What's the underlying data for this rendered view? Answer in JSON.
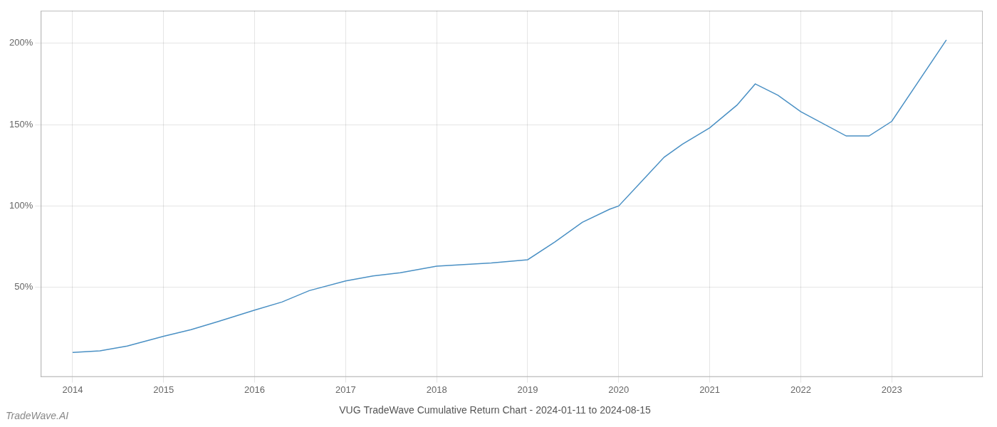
{
  "chart_data": {
    "type": "line",
    "title": "VUG TradeWave Cumulative Return Chart - 2024-01-11 to 2024-08-15",
    "annotations": [
      "TradeWave.AI"
    ],
    "x": [
      2014.0,
      2014.3,
      2014.6,
      2015.0,
      2015.3,
      2015.6,
      2016.0,
      2016.3,
      2016.6,
      2017.0,
      2017.3,
      2017.6,
      2018.0,
      2018.3,
      2018.6,
      2019.0,
      2019.3,
      2019.6,
      2019.9,
      2020.0,
      2020.3,
      2020.5,
      2020.7,
      2021.0,
      2021.3,
      2021.5,
      2021.75,
      2022.0,
      2022.5,
      2022.75,
      2023.0,
      2023.6
    ],
    "values": [
      10,
      11,
      14,
      20,
      24,
      29,
      36,
      41,
      48,
      54,
      57,
      59,
      63,
      64,
      65,
      67,
      78,
      90,
      98,
      100,
      118,
      130,
      138,
      148,
      162,
      175,
      168,
      158,
      143,
      143,
      152,
      202
    ],
    "color": "#4a90c4",
    "xlim": [
      2013.65,
      2024.0
    ],
    "xticks": [
      2014,
      2015,
      2016,
      2017,
      2018,
      2019,
      2020,
      2021,
      2022,
      2023
    ],
    "ylim": [
      -5,
      220
    ],
    "yticks": [
      {
        "value": 50,
        "label": "50%"
      },
      {
        "value": 100,
        "label": "100%"
      },
      {
        "value": 150,
        "label": "150%"
      },
      {
        "value": 200,
        "label": "200%"
      }
    ],
    "grid": true
  }
}
